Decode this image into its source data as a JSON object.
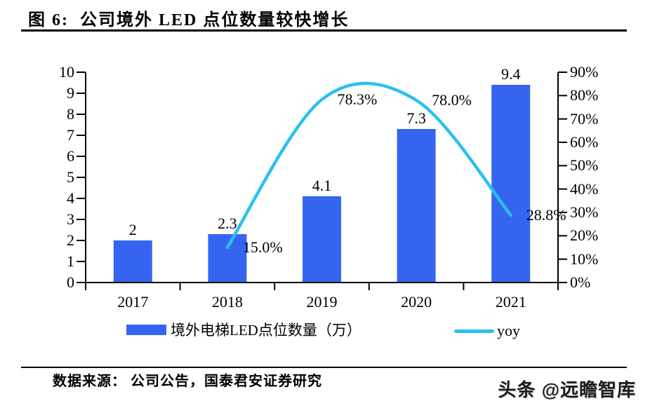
{
  "header": {
    "title": "图 6:  公司境外 LED 点位数量较快增长"
  },
  "footer": {
    "source": "数据来源： 公司公告，国泰君安证券研究",
    "watermark": "头条 @远瞻智库"
  },
  "chart_data": {
    "type": "bar+line",
    "categories": [
      "2017",
      "2018",
      "2019",
      "2020",
      "2021"
    ],
    "series": [
      {
        "name": "境外电梯LED点位数量（万）",
        "type": "bar",
        "axis": "left",
        "values": [
          2,
          2.3,
          4.1,
          7.3,
          9.4
        ],
        "labels": [
          "2",
          "2.3",
          "4.1",
          "7.3",
          "9.4"
        ],
        "color": "#3565F0"
      },
      {
        "name": "yoy",
        "type": "line",
        "axis": "right",
        "values": [
          null,
          0.15,
          0.783,
          0.78,
          0.288
        ],
        "labels": [
          null,
          "15.0%",
          "78.3%",
          "78.0%",
          "28.8%"
        ],
        "color": "#29C1EF"
      }
    ],
    "left_axis": {
      "min": 0,
      "max": 10,
      "step": 1,
      "tick_labels": [
        "0",
        "1",
        "2",
        "3",
        "4",
        "5",
        "6",
        "7",
        "8",
        "9",
        "10"
      ]
    },
    "right_axis": {
      "min": 0,
      "max": 0.9,
      "tick_labels": [
        "0%",
        "10%",
        "20%",
        "30%",
        "40%",
        "50%",
        "60%",
        "70%",
        "80%",
        "90%"
      ]
    },
    "legend": [
      {
        "label": "境外电梯LED点位数量（万）",
        "type": "bar"
      },
      {
        "label": "yoy",
        "type": "line"
      }
    ],
    "grid": false,
    "legend_position": "bottom"
  }
}
